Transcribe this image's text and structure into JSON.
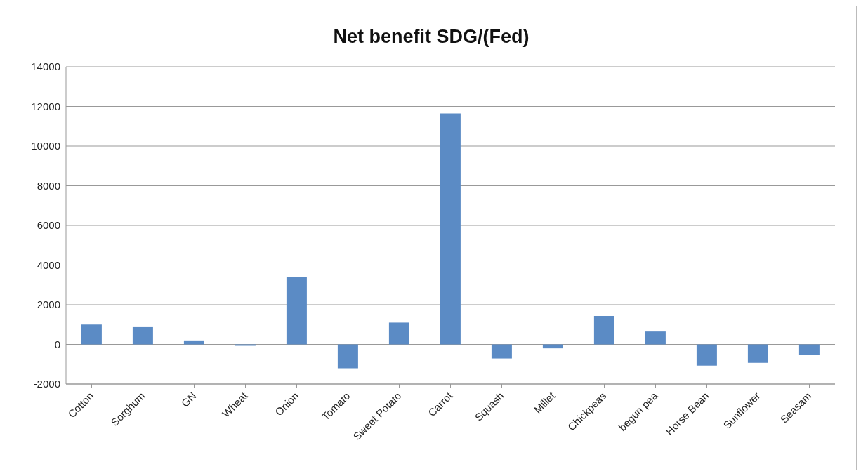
{
  "chart_data": {
    "type": "bar",
    "title": "Net benefit SDG/(Fed)",
    "categories": [
      "Cotton",
      "Sorghum",
      "GN",
      "Wheat",
      "Onion",
      "Tomato",
      "Sweet Potato",
      "Carrot",
      "Squash",
      "Millet",
      "Chickpeas",
      "begun pea",
      "Horse Bean",
      "Sunflower",
      "Seasam"
    ],
    "values": [
      1000,
      870,
      200,
      -70,
      3400,
      -1200,
      1100,
      11650,
      -710,
      -200,
      1430,
      650,
      -1070,
      -930,
      -520
    ],
    "color": "#5b8bc5",
    "ylim": [
      -2000,
      14000
    ],
    "yticks": [
      -2000,
      0,
      2000,
      4000,
      6000,
      8000,
      10000,
      12000,
      14000
    ],
    "grid": "y",
    "legend": false
  }
}
